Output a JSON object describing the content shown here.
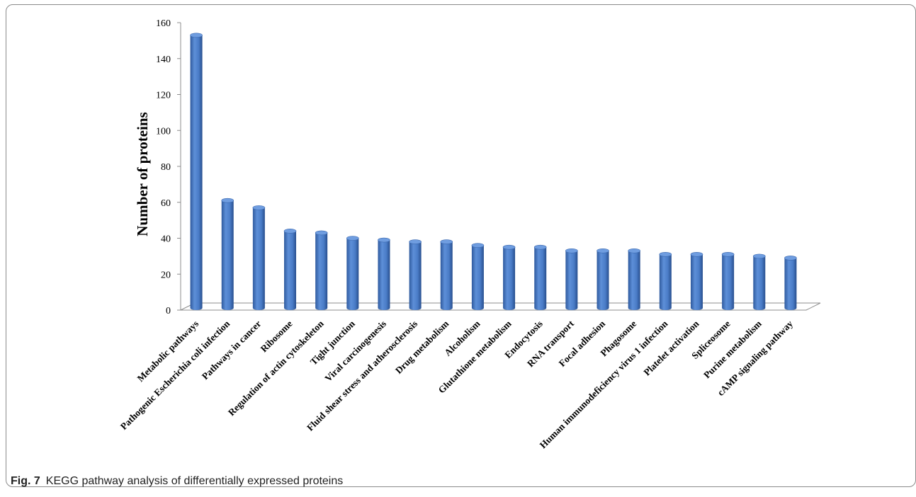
{
  "figure": {
    "caption_label": "Fig. 7",
    "caption_text": "KEGG pathway analysis of differentially expressed proteins"
  },
  "chart_data": {
    "type": "bar",
    "style": "3d-cylinder",
    "ylabel": "Number of proteins",
    "xlabel": "",
    "ylim": [
      0,
      160
    ],
    "yticks": [
      0,
      20,
      40,
      60,
      80,
      100,
      120,
      140,
      160
    ],
    "grid": false,
    "bar_color": "#4a7cc7",
    "categories": [
      "Metabolic pathways",
      "Pathogenic Escherichia coli infection",
      "Pathways in cancer",
      "Ribosome",
      "Regulation of actin cytoskeleton",
      "Tight junction",
      "Viral carcinogenesis",
      "Fluid shear stress and atherosclerosis",
      "Drug metabolism",
      "Alcoholism",
      "Glutathione metabolism",
      "Endocytosis",
      "RNA transport",
      "Focal adhesion",
      "Phagosome",
      "Human immunodeficiency virus 1 infection",
      "Platelet activation",
      "Spliceosome",
      "Purine metabolism",
      "cAMP signaling pathway"
    ],
    "values": [
      153,
      61,
      57,
      44,
      43,
      40,
      39,
      38,
      38,
      36,
      35,
      35,
      33,
      33,
      33,
      31,
      31,
      31,
      30,
      29
    ]
  }
}
